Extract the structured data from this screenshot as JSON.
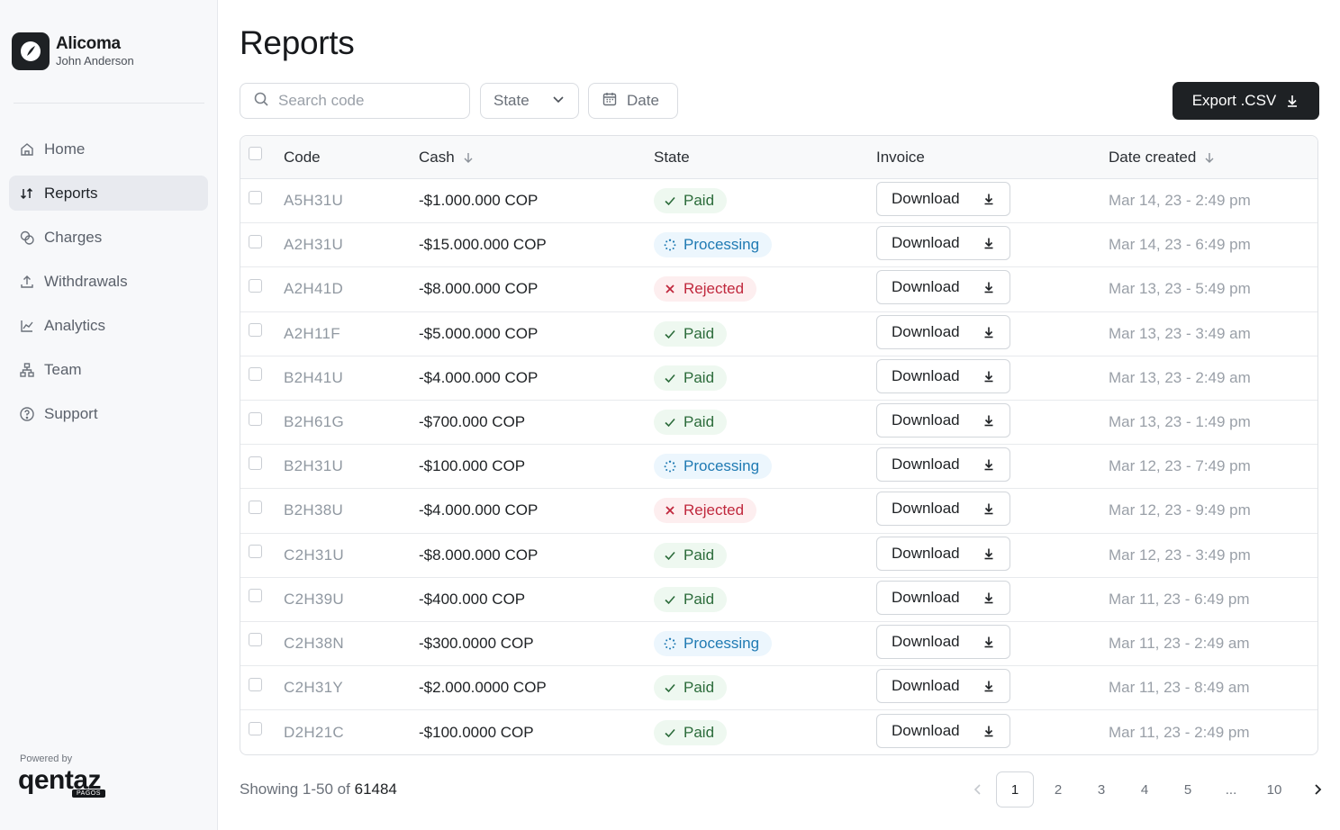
{
  "brand": {
    "name": "Alicoma",
    "user": "John Anderson"
  },
  "sidebar": {
    "items": [
      {
        "label": "Home",
        "icon": "home-icon",
        "active": false
      },
      {
        "label": "Reports",
        "icon": "sort-arrows-icon",
        "active": true
      },
      {
        "label": "Charges",
        "icon": "coins-icon",
        "active": false
      },
      {
        "label": "Withdrawals",
        "icon": "upload-icon",
        "active": false
      },
      {
        "label": "Analytics",
        "icon": "line-chart-icon",
        "active": false
      },
      {
        "label": "Team",
        "icon": "org-chart-icon",
        "active": false
      },
      {
        "label": "Support",
        "icon": "help-circle-icon",
        "active": false
      }
    ],
    "powered_by": "Powered by",
    "powered_brand": "qentaz",
    "powered_sub": "PAGOS"
  },
  "page": {
    "title": "Reports"
  },
  "toolbar": {
    "search_placeholder": "Search code",
    "state_label": "State",
    "date_label": "Date",
    "export_label": "Export .CSV"
  },
  "table": {
    "headers": {
      "code": "Code",
      "cash": "Cash",
      "state": "State",
      "invoice": "Invoice",
      "date": "Date created"
    },
    "download_label": "Download",
    "rows": [
      {
        "code": "A5H31U",
        "cash": "-$1.000.000 COP",
        "state": "Paid",
        "date": "Mar 14, 23 - 2:49 pm"
      },
      {
        "code": "A2H31U",
        "cash": "-$15.000.000 COP",
        "state": "Processing",
        "date": "Mar 14, 23 - 6:49 pm"
      },
      {
        "code": "A2H41D",
        "cash": "-$8.000.000 COP",
        "state": "Rejected",
        "date": "Mar 13, 23 - 5:49 pm"
      },
      {
        "code": "A2H11F",
        "cash": "-$5.000.000 COP",
        "state": "Paid",
        "date": "Mar 13, 23 - 3:49 am"
      },
      {
        "code": "B2H41U",
        "cash": "-$4.000.000 COP",
        "state": "Paid",
        "date": "Mar 13, 23 - 2:49 am"
      },
      {
        "code": "B2H61G",
        "cash": "-$700.000 COP",
        "state": "Paid",
        "date": "Mar 13, 23 - 1:49 pm"
      },
      {
        "code": "B2H31U",
        "cash": "-$100.000 COP",
        "state": "Processing",
        "date": "Mar 12, 23 - 7:49 pm"
      },
      {
        "code": "B2H38U",
        "cash": "-$4.000.000 COP",
        "state": "Rejected",
        "date": "Mar 12, 23 - 9:49 pm"
      },
      {
        "code": "C2H31U",
        "cash": "-$8.000.000 COP",
        "state": "Paid",
        "date": "Mar 12, 23 - 3:49 pm"
      },
      {
        "code": "C2H39U",
        "cash": "-$400.000 COP",
        "state": "Paid",
        "date": "Mar 11, 23 - 6:49 pm"
      },
      {
        "code": "C2H38N",
        "cash": "-$300.0000 COP",
        "state": "Processing",
        "date": "Mar 11, 23 - 2:49 am"
      },
      {
        "code": "C2H31Y",
        "cash": "-$2.000.0000 COP",
        "state": "Paid",
        "date": "Mar 11, 23 - 8:49 am"
      },
      {
        "code": "D2H21C",
        "cash": "-$100.0000 COP",
        "state": "Paid",
        "date": "Mar 11, 23 - 2:49 pm"
      }
    ]
  },
  "footer": {
    "showing_prefix": "Showing 1-50 of",
    "total": "61484",
    "pages": [
      "1",
      "2",
      "3",
      "4",
      "5",
      "...",
      "10"
    ],
    "current_page": "1"
  },
  "colors": {
    "paid": "#2b6b3a",
    "processing": "#1f7ab3",
    "rejected": "#c0283d",
    "primary_button": "#1e2124"
  }
}
